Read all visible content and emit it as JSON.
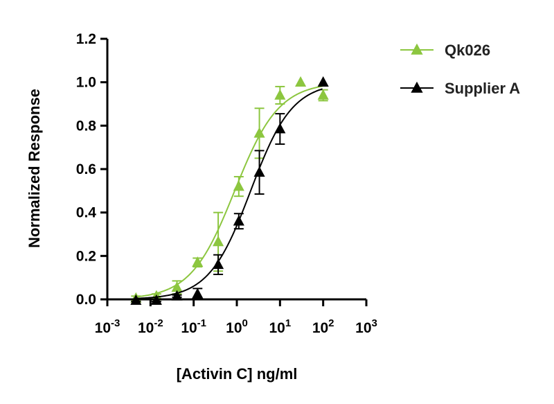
{
  "chart_data": {
    "type": "scatter",
    "title": "",
    "xlabel": "[Activin C] ng/ml",
    "ylabel": "Normalized Response",
    "x_scale": "log10",
    "xlim": [
      -3,
      3
    ],
    "ylim": [
      0,
      1.2
    ],
    "y_ticks": [
      "0.0",
      "0.2",
      "0.4",
      "0.6",
      "0.8",
      "1.0",
      "1.2"
    ],
    "x_ticks": [
      {
        "base": "10",
        "exp": "-3"
      },
      {
        "base": "10",
        "exp": "-2"
      },
      {
        "base": "10",
        "exp": "-1"
      },
      {
        "base": "10",
        "exp": "0"
      },
      {
        "base": "10",
        "exp": "1"
      },
      {
        "base": "10",
        "exp": "2"
      },
      {
        "base": "10",
        "exp": "3"
      }
    ],
    "legend_position": "top-right",
    "series": [
      {
        "name": "Qk026",
        "color": "#8cc63f",
        "marker": "triangle-up",
        "points": [
          {
            "x": 0.0046,
            "y": 0.005,
            "err": 0.01
          },
          {
            "x": 0.0137,
            "y": 0.015,
            "err": 0.01
          },
          {
            "x": 0.041,
            "y": 0.055,
            "err": 0.03
          },
          {
            "x": 0.123,
            "y": 0.17,
            "err": 0.02
          },
          {
            "x": 0.37,
            "y": 0.265,
            "err": 0.135
          },
          {
            "x": 1.11,
            "y": 0.52,
            "err": 0.045
          },
          {
            "x": 3.33,
            "y": 0.765,
            "err": 0.115
          },
          {
            "x": 10,
            "y": 0.94,
            "err": 0.04
          },
          {
            "x": 30,
            "y": 1.0,
            "err": 0.0
          },
          {
            "x": 100,
            "y": 0.94,
            "err": 0.025
          }
        ],
        "fit": {
          "bottom": 0.0,
          "top": 1.0,
          "logEC50": -0.05,
          "hill": 0.85
        }
      },
      {
        "name": "Supplier A",
        "color": "#000000",
        "marker": "triangle-up",
        "points": [
          {
            "x": 0.0046,
            "y": -0.005,
            "err": 0.005
          },
          {
            "x": 0.0137,
            "y": -0.005,
            "err": 0.005
          },
          {
            "x": 0.041,
            "y": 0.015,
            "err": 0.005
          },
          {
            "x": 0.123,
            "y": 0.025,
            "err": 0.025
          },
          {
            "x": 0.37,
            "y": 0.16,
            "err": 0.045
          },
          {
            "x": 1.11,
            "y": 0.36,
            "err": 0.035
          },
          {
            "x": 3.33,
            "y": 0.585,
            "err": 0.1
          },
          {
            "x": 10,
            "y": 0.785,
            "err": 0.07
          },
          {
            "x": 100,
            "y": 1.0,
            "err": 0.0
          }
        ],
        "fit": {
          "bottom": 0.0,
          "top": 1.0,
          "logEC50": 0.32,
          "hill": 0.9
        }
      }
    ]
  }
}
